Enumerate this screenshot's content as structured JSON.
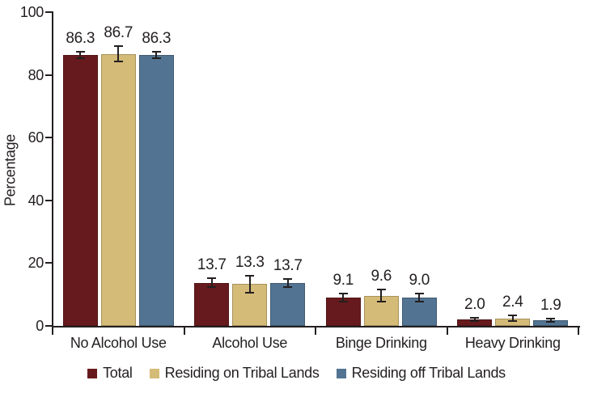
{
  "chart_data": {
    "type": "bar",
    "title": "",
    "categories": [
      "No Alcohol Use",
      "Alcohol Use",
      "Binge Drinking",
      "Heavy Drinking"
    ],
    "series": [
      {
        "name": "Total",
        "color": "#671a1d",
        "values": [
          86.3,
          13.7,
          9.1,
          2.0
        ],
        "errors": [
          1.0,
          1.4,
          1.3,
          0.5
        ]
      },
      {
        "name": "Residing on Tribal Lands",
        "color": "#d5bb78",
        "values": [
          86.7,
          13.3,
          9.6,
          2.4
        ],
        "errors": [
          2.4,
          2.7,
          1.9,
          0.9
        ]
      },
      {
        "name": "Residing off Tribal Lands",
        "color": "#527492",
        "values": [
          86.3,
          13.7,
          9.0,
          1.9
        ],
        "errors": [
          1.0,
          1.3,
          1.3,
          0.5
        ]
      }
    ],
    "value_labels": [
      "86.3",
      "86.7",
      "86.3",
      "13.7",
      "13.3",
      "13.7",
      "9.1",
      "9.6",
      "9.0",
      "2.0",
      "2.4",
      "1.9"
    ],
    "xlabel": "",
    "ylabel": "Percentage",
    "ylim": [
      0,
      100
    ],
    "yticks": [
      0,
      20,
      40,
      60,
      80,
      100
    ],
    "grid": false,
    "error_bars": true,
    "legend_position": "bottom",
    "axis_color": "#231f20"
  }
}
